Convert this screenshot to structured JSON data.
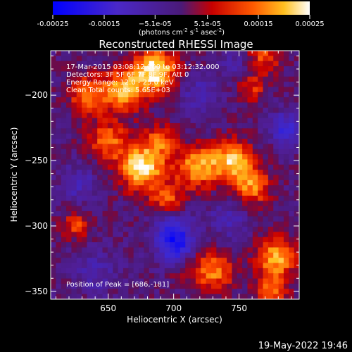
{
  "chart_data": {
    "type": "heatmap",
    "title": "Reconstructed RHESSI Image",
    "xlabel": "Heliocentric X (arcsec)",
    "ylabel": "Heliocentric Y (arcsec)",
    "xlim": [
      606,
      796
    ],
    "ylim": [
      -356,
      -166
    ],
    "x_ticks": [
      650,
      700,
      750
    ],
    "x_tick_labels": [
      "650",
      "700",
      "750"
    ],
    "y_ticks": [
      -200,
      -250,
      -300,
      -350
    ],
    "y_tick_labels": [
      "−200",
      "−250",
      "−300",
      "−350"
    ],
    "colorbar": {
      "min": -0.00025,
      "max": 0.00025,
      "ticks": [
        -0.00025,
        -0.00015,
        -5.1e-05,
        5.1e-05,
        0.00015,
        0.00025
      ],
      "tick_labels": [
        "-0.00025",
        "-0.00015",
        "−5.1e-05",
        "5.1e-05",
        "0.00015",
        "0.00025"
      ],
      "unit_prefix": "(photons cm",
      "unit_exp1": "-2",
      "unit_mid": " s",
      "unit_exp2": "-1",
      "unit_mid2": " asec",
      "unit_exp3": "-2",
      "unit_suffix": ")"
    },
    "annotations": {
      "line1": "17-Mar-2015 03:08:12.000 to 03:12:32.000",
      "line2": "Detectors: 3F 5F 6F 7F 8F 9F, Att 0",
      "line3": "Energy Range: 12.0 - 25.0 keV",
      "line4": "Clean     Total counts: 5.65E+03",
      "peak": "Position of Peak = [686,-181]"
    },
    "sources": [
      {
        "x": 676,
        "y": -255,
        "flux": 0.00024,
        "radius": 12
      },
      {
        "x": 686,
        "y": -181,
        "flux": 0.00025,
        "radius": 11
      },
      {
        "x": 662,
        "y": -196,
        "flux": 0.0002,
        "radius": 11
      },
      {
        "x": 635,
        "y": -200,
        "flux": 0.00016,
        "radius": 10
      },
      {
        "x": 718,
        "y": -255,
        "flux": 0.00019,
        "radius": 11
      },
      {
        "x": 745,
        "y": -250,
        "flux": 0.00021,
        "radius": 11
      },
      {
        "x": 760,
        "y": -270,
        "flux": 0.00016,
        "radius": 10
      },
      {
        "x": 650,
        "y": -235,
        "flux": 0.00014,
        "radius": 11
      },
      {
        "x": 695,
        "y": -280,
        "flux": 0.00013,
        "radius": 9
      },
      {
        "x": 690,
        "y": -235,
        "flux": 0.00012,
        "radius": 9
      },
      {
        "x": 770,
        "y": -170,
        "flux": 0.00012,
        "radius": 9
      },
      {
        "x": 778,
        "y": -325,
        "flux": 0.00019,
        "radius": 11
      },
      {
        "x": 730,
        "y": -335,
        "flux": 0.00016,
        "radius": 11
      },
      {
        "x": 775,
        "y": -350,
        "flux": 0.00015,
        "radius": 8
      },
      {
        "x": 760,
        "y": -195,
        "flux": 0.0001,
        "radius": 8
      },
      {
        "x": 625,
        "y": -300,
        "flux": 0.00012,
        "radius": 7
      },
      {
        "x": 705,
        "y": -330,
        "flux": 0.0001,
        "radius": 8
      },
      {
        "x": 700,
        "y": -305,
        "flux": -0.00018,
        "radius": 10
      },
      {
        "x": 702,
        "y": -322,
        "flux": -0.00016,
        "radius": 9
      },
      {
        "x": 720,
        "y": -200,
        "flux": -8e-05,
        "radius": 10
      },
      {
        "x": 785,
        "y": -225,
        "flux": -0.00014,
        "radius": 8
      },
      {
        "x": 628,
        "y": -268,
        "flux": -8e-05,
        "radius": 10
      },
      {
        "x": 742,
        "y": -295,
        "flux": -8e-05,
        "radius": 10
      },
      {
        "x": 640,
        "y": -335,
        "flux": -7e-05,
        "radius": 11
      },
      {
        "x": 745,
        "y": -178,
        "flux": -6e-05,
        "radius": 8
      }
    ]
  },
  "footer": {
    "date": "19-May-2022 19:46"
  }
}
